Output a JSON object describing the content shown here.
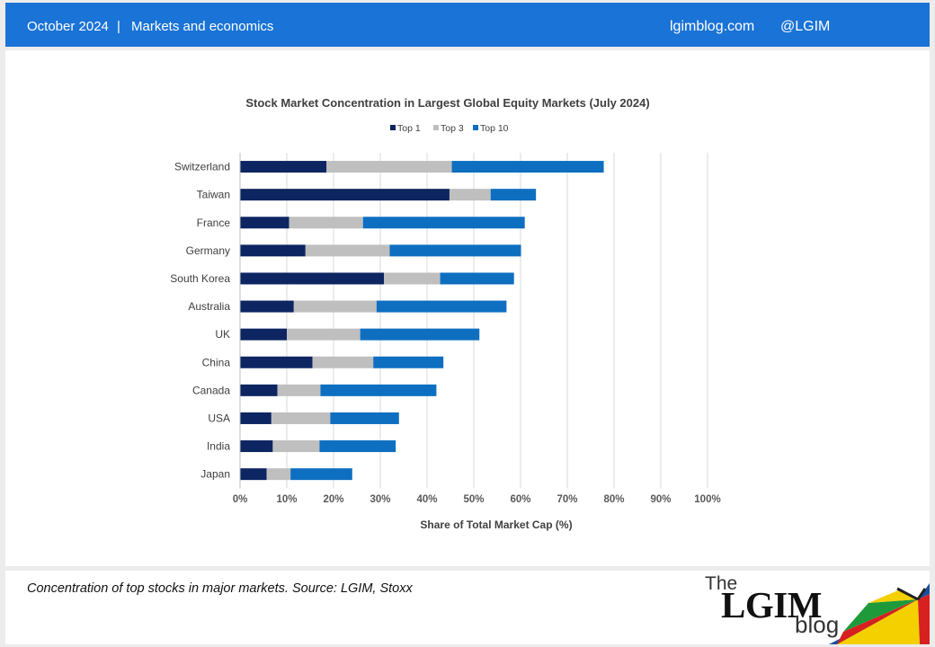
{
  "header": {
    "date": "October 2024",
    "separator": "|",
    "section": "Markets and economics",
    "site": "lgimblog.com",
    "handle": "@LGIM"
  },
  "caption": "Concentration of top stocks in major markets. Source: LGIM, Stoxx",
  "logo": {
    "the": "The",
    "name": "LGIM",
    "blog": "blog"
  },
  "colors": {
    "brand_bar": "#1a73d6",
    "top1": "#0d2561",
    "top3": "#bfbfbf",
    "top10": "#0e6fc1"
  },
  "chart_data": {
    "type": "bar",
    "orientation": "horizontal",
    "stacked": true,
    "title": "Stock Market Concentration in Largest Global Equity Markets (July 2024)",
    "xlabel": "Share of Total Market Cap (%)",
    "ylabel": "",
    "xlim": [
      0,
      100
    ],
    "xticks": [
      "0%",
      "10%",
      "20%",
      "30%",
      "40%",
      "50%",
      "60%",
      "70%",
      "80%",
      "90%",
      "100%"
    ],
    "grid": "vertical",
    "legend_position": "top",
    "categories": [
      "Switzerland",
      "Taiwan",
      "France",
      "Germany",
      "South Korea",
      "Australia",
      "UK",
      "China",
      "Canada",
      "USA",
      "India",
      "Japan"
    ],
    "series": [
      {
        "name": "Top 1",
        "color": "#0d2561",
        "values": [
          18.5,
          44.8,
          10.5,
          14.0,
          30.8,
          11.5,
          10.0,
          15.5,
          8.0,
          6.7,
          7.0,
          5.7
        ]
      },
      {
        "name": "Top 3",
        "color": "#bfbfbf",
        "values": [
          26.8,
          8.8,
          15.8,
          18.0,
          12.0,
          17.7,
          15.7,
          13.0,
          9.2,
          12.6,
          10.0,
          5.1
        ]
      },
      {
        "name": "Top 10",
        "color": "#0e6fc1",
        "values": [
          32.5,
          9.7,
          34.6,
          28.1,
          15.8,
          27.8,
          25.5,
          15.0,
          24.8,
          14.7,
          16.3,
          13.2
        ]
      }
    ]
  }
}
